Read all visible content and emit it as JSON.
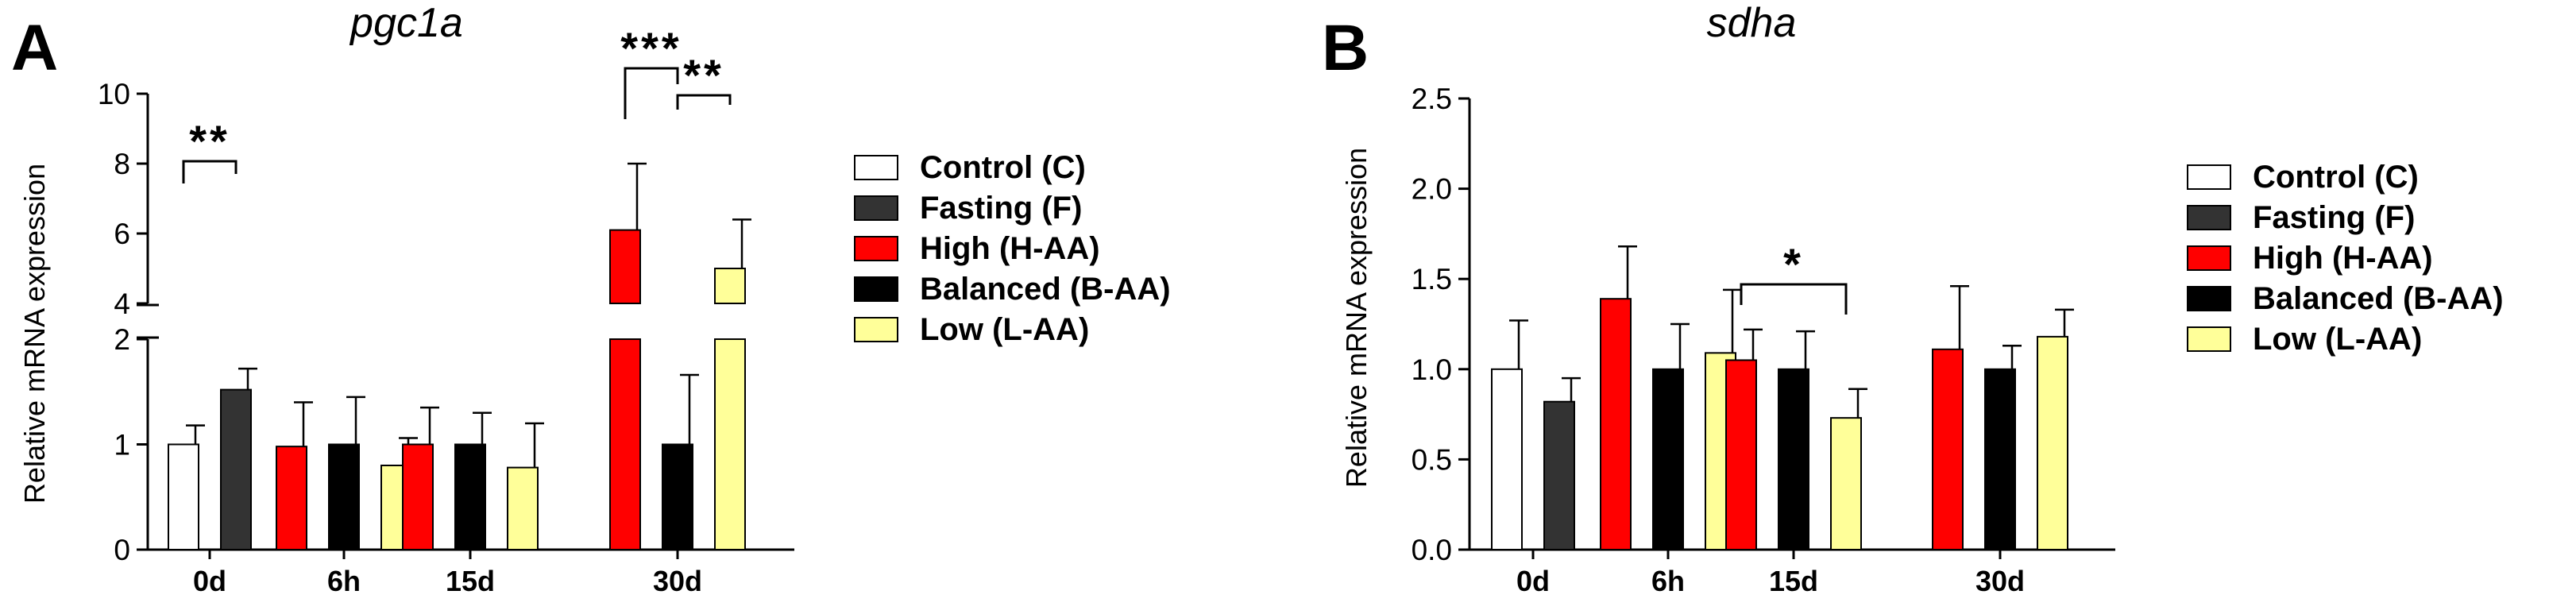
{
  "colors": {
    "control": "#ffffff",
    "fasting": "#333333",
    "high": "#ff0000",
    "balanced": "#000000",
    "low": "#ffff99",
    "axis": "#000000"
  },
  "chart_data": [
    {
      "type": "bar",
      "panel": "A",
      "title": "pgc1a",
      "ylabel": "Relative mRNA expression",
      "categories": [
        "0d",
        "6h",
        "15d",
        "30d"
      ],
      "ylim_lower": [
        0,
        2
      ],
      "ylim_upper": [
        4,
        10
      ],
      "ticks_lower": [
        "0",
        "1",
        "2"
      ],
      "ticks_upper": [
        "4",
        "6",
        "8",
        "10"
      ],
      "series": [
        {
          "name": "Control (C)",
          "key": "control",
          "values": [
            1.0,
            null,
            null,
            null
          ],
          "errors": [
            0.18,
            null,
            null,
            null
          ]
        },
        {
          "name": "Fasting (F)",
          "key": "fasting",
          "values": [
            1.52,
            null,
            null,
            null
          ],
          "errors": [
            0.2,
            null,
            null,
            null
          ]
        },
        {
          "name": "High (H-AA)",
          "key": "high",
          "values": [
            null,
            0.98,
            1.0,
            6.1
          ],
          "errors": [
            null,
            0.42,
            0.35,
            1.9
          ]
        },
        {
          "name": "Balanced (B-AA)",
          "key": "balanced",
          "values": [
            null,
            1.0,
            1.0,
            1.0
          ],
          "errors": [
            null,
            0.45,
            0.3,
            0.66
          ]
        },
        {
          "name": "Low (L-AA)",
          "key": "low",
          "values": [
            null,
            0.8,
            0.78,
            5.0
          ],
          "errors": [
            null,
            0.26,
            0.42,
            1.4
          ]
        }
      ],
      "significance": [
        {
          "label": "**",
          "category": "0d",
          "from": "control",
          "to": "fasting"
        },
        {
          "label": "***",
          "category": "30d",
          "from": "high",
          "to": "balanced"
        },
        {
          "label": "**",
          "category": "30d",
          "from": "balanced",
          "to": "low"
        }
      ],
      "legend_position": "right"
    },
    {
      "type": "bar",
      "panel": "B",
      "title": "sdha",
      "ylabel": "Relative mRNA expression",
      "categories": [
        "0d",
        "6h",
        "15d",
        "30d"
      ],
      "ylim": [
        0,
        2.5
      ],
      "ticks": [
        "0.0",
        "0.5",
        "1.0",
        "1.5",
        "2.0",
        "2.5"
      ],
      "series": [
        {
          "name": "Control (C)",
          "key": "control",
          "values": [
            1.0,
            null,
            null,
            null
          ],
          "errors": [
            0.27,
            null,
            null,
            null
          ]
        },
        {
          "name": "Fasting (F)",
          "key": "fasting",
          "values": [
            0.82,
            null,
            null,
            null
          ],
          "errors": [
            0.13,
            null,
            null,
            null
          ]
        },
        {
          "name": "High (H-AA)",
          "key": "high",
          "values": [
            null,
            1.39,
            1.05,
            1.11
          ],
          "errors": [
            null,
            0.29,
            0.17,
            0.35
          ]
        },
        {
          "name": "Balanced (B-AA)",
          "key": "balanced",
          "values": [
            null,
            1.0,
            1.0,
            1.0
          ],
          "errors": [
            null,
            0.25,
            0.21,
            0.13
          ]
        },
        {
          "name": "Low (L-AA)",
          "key": "low",
          "values": [
            null,
            1.09,
            0.73,
            1.18
          ],
          "errors": [
            null,
            0.35,
            0.16,
            0.15
          ]
        }
      ],
      "significance": [
        {
          "label": "*",
          "category": "15d",
          "from": "high",
          "to": "low"
        }
      ],
      "legend_position": "right"
    }
  ]
}
